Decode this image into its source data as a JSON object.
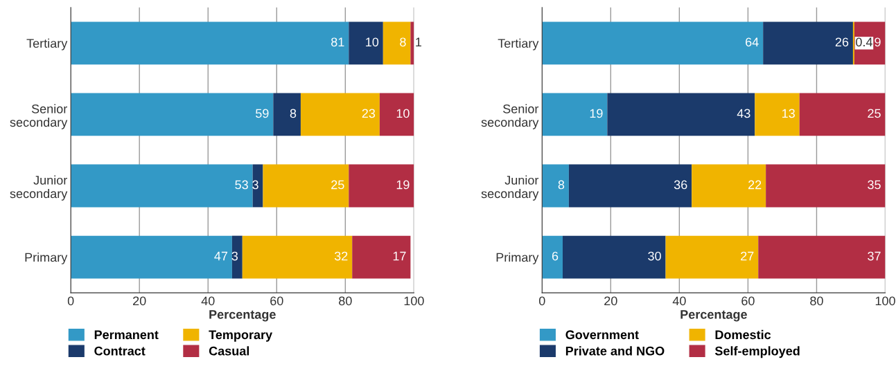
{
  "chart_data": [
    {
      "type": "bar",
      "orientation": "horizontal",
      "stacked": true,
      "categories": [
        "Tertiary",
        "Senior\nsecondary",
        "Junior\nsecondary",
        "Primary"
      ],
      "xlabel": "Percentage",
      "xlim": [
        0,
        100
      ],
      "xticks": [
        0,
        20,
        40,
        60,
        80,
        100
      ],
      "grid": "x",
      "legend": "bottom",
      "data_labels": true,
      "series": [
        {
          "name": "Permanent",
          "color": "#3399c6",
          "values": [
            81,
            59,
            53,
            47
          ]
        },
        {
          "name": "Contract",
          "color": "#1b3a6b",
          "values": [
            10,
            8,
            3,
            3
          ]
        },
        {
          "name": "Temporary",
          "color": "#f0b400",
          "values": [
            8,
            23,
            25,
            32
          ]
        },
        {
          "name": "Casual",
          "color": "#b22e44",
          "values": [
            1,
            10,
            19,
            17
          ]
        }
      ]
    },
    {
      "type": "bar",
      "orientation": "horizontal",
      "stacked": true,
      "categories": [
        "Tertiary",
        "Senior\nsecondary",
        "Junior\nsecondary",
        "Primary"
      ],
      "xlabel": "Percentage",
      "xlim": [
        0,
        100
      ],
      "xticks": [
        0,
        20,
        40,
        60,
        80,
        100
      ],
      "grid": "x",
      "legend": "bottom",
      "series": [
        {
          "name": "Government",
          "color": "#3399c6",
          "values": [
            64.4,
            19,
            7.8,
            6
          ],
          "value_labels": [
            "64",
            "19",
            "8",
            "6"
          ]
        },
        {
          "name": "Private and NGO",
          "color": "#1b3a6b",
          "values": [
            26.2,
            43,
            35.8,
            30
          ],
          "value_labels": [
            "26",
            "43",
            "36",
            "30"
          ]
        },
        {
          "name": "Domestic",
          "color": "#f0b400",
          "values": [
            0.4,
            13,
            21.6,
            27
          ],
          "value_labels": [
            "0.4",
            "13",
            "22",
            "27"
          ]
        },
        {
          "name": "Self-employed",
          "color": "#b22e44",
          "values": [
            9.0,
            25,
            34.8,
            37
          ],
          "value_labels": [
            "9",
            "25",
            "35",
            "37"
          ]
        }
      ]
    }
  ]
}
